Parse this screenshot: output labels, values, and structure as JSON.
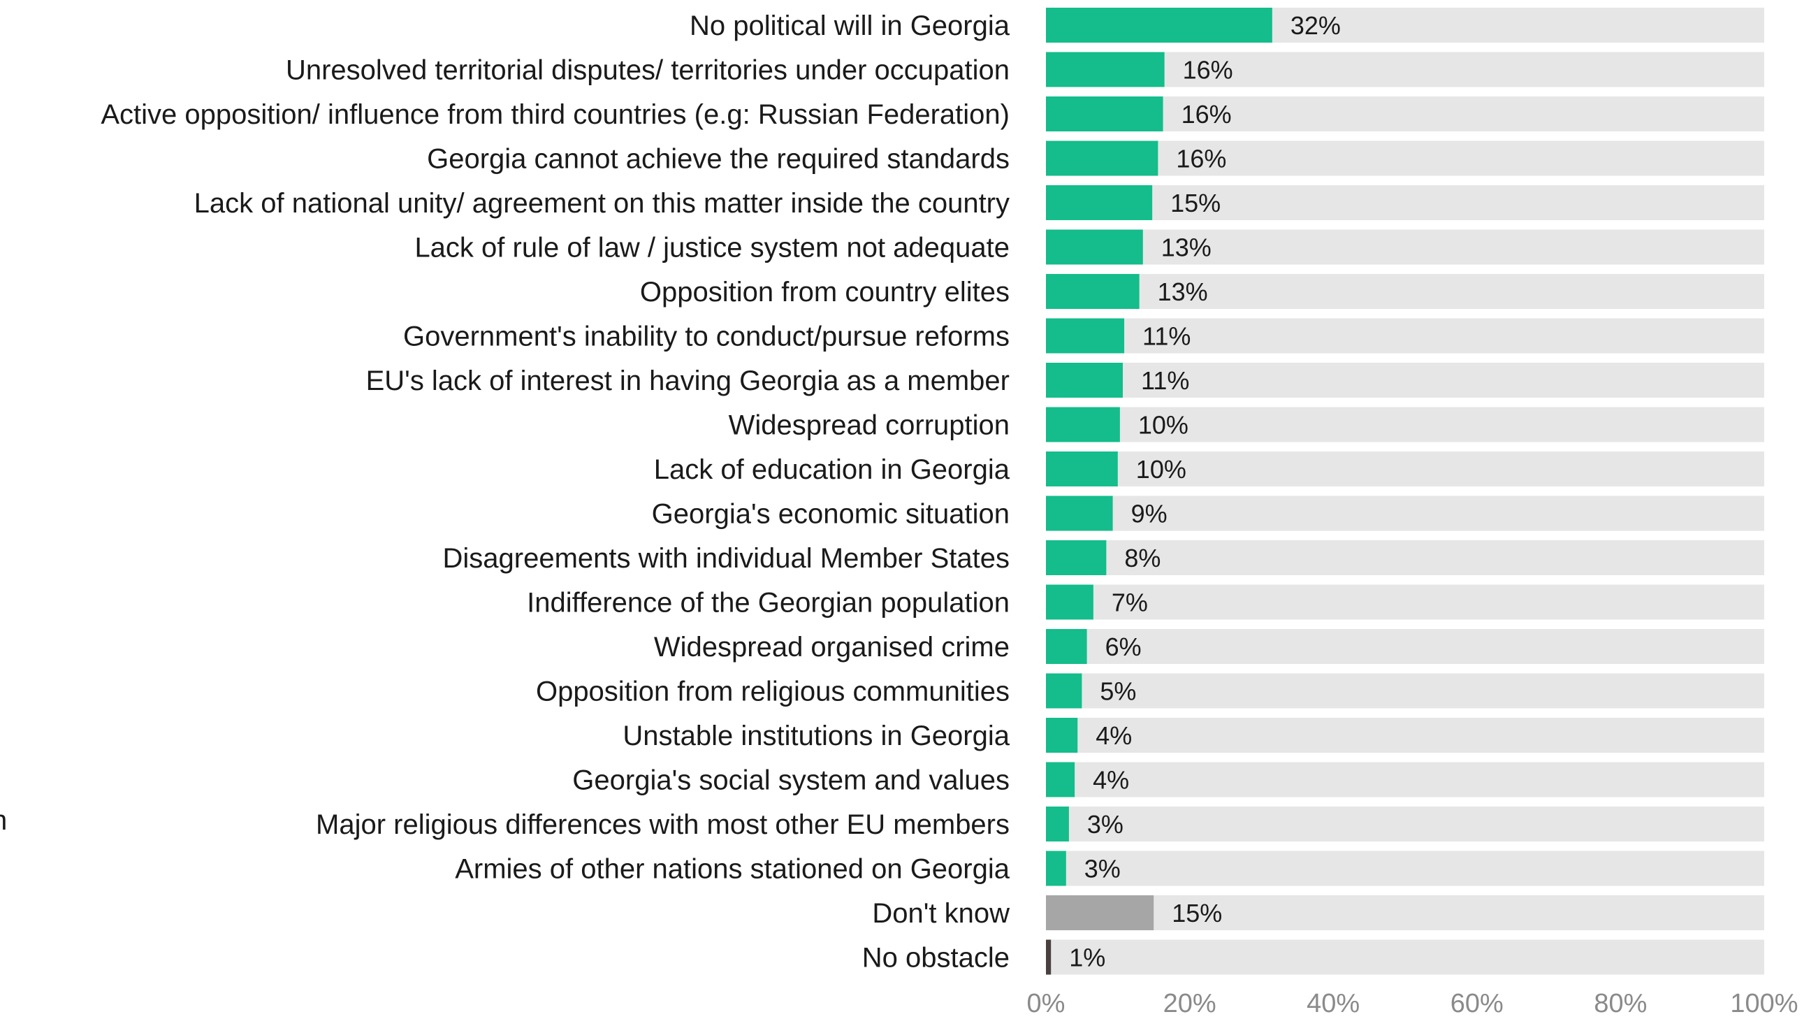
{
  "chart_data": {
    "type": "bar",
    "orientation": "horizontal",
    "stacked_with_remainder": true,
    "categories": [
      "No political will in  Georgia",
      "Unresolved territorial disputes/ territories under occupation",
      "Active opposition/ influence from third countries (e.g: Russian Federation)",
      "Georgia cannot achieve the required standards",
      "Lack of national unity/ agreement on this matter inside the country",
      "Lack of rule of law / justice system not adequate",
      "Opposition from country elites",
      "Government's inability to conduct/pursue reforms",
      "EU's lack of interest in having Georgia as a member",
      "Widespread corruption",
      "Lack of education in Georgia",
      "Georgia's economic situation",
      "Disagreements with individual Member States",
      "Indifference of the  Georgian population",
      "Widespread organised crime",
      "Opposition from religious communities",
      "Unstable institutions in Georgia",
      "Georgia's social system and values",
      "Major religious differences with most other EU members",
      "Armies of other nations stationed on Georgia",
      "Don't know",
      "No obstacle"
    ],
    "values": [
      32,
      16,
      16,
      16,
      15,
      13,
      13,
      11,
      11,
      10,
      10,
      9,
      8,
      7,
      6,
      5,
      4,
      4,
      3,
      3,
      15,
      1
    ],
    "bar_lengths": [
      31.5,
      16.5,
      16.3,
      15.6,
      14.8,
      13.5,
      13.0,
      10.9,
      10.7,
      10.3,
      10.0,
      9.3,
      8.4,
      6.6,
      5.7,
      5.0,
      4.4,
      4.0,
      3.2,
      2.8,
      15.0,
      0.7
    ],
    "value_labels": [
      "32%",
      "16%",
      "16%",
      "16%",
      "15%",
      "13%",
      "13%",
      "11%",
      "11%",
      "10%",
      "10%",
      "9%",
      "8%",
      "7%",
      "6%",
      "5%",
      "4%",
      "4%",
      "3%",
      "3%",
      "15%",
      "1%"
    ],
    "bar_colors": [
      "#14bd8b",
      "#14bd8b",
      "#14bd8b",
      "#14bd8b",
      "#14bd8b",
      "#14bd8b",
      "#14bd8b",
      "#14bd8b",
      "#14bd8b",
      "#14bd8b",
      "#14bd8b",
      "#14bd8b",
      "#14bd8b",
      "#14bd8b",
      "#14bd8b",
      "#14bd8b",
      "#14bd8b",
      "#14bd8b",
      "#14bd8b",
      "#14bd8b",
      "#a6a6a6",
      "#4a4040"
    ],
    "remainder_color": "#e6e6e6",
    "xlim": [
      0,
      100
    ],
    "xticks": [
      "0%",
      "20%",
      "40%",
      "60%",
      "80%",
      "100%"
    ],
    "grid": false,
    "legend": "none",
    "title": "",
    "xlabel": "",
    "ylabel": ""
  },
  "edge_glyph": "n"
}
